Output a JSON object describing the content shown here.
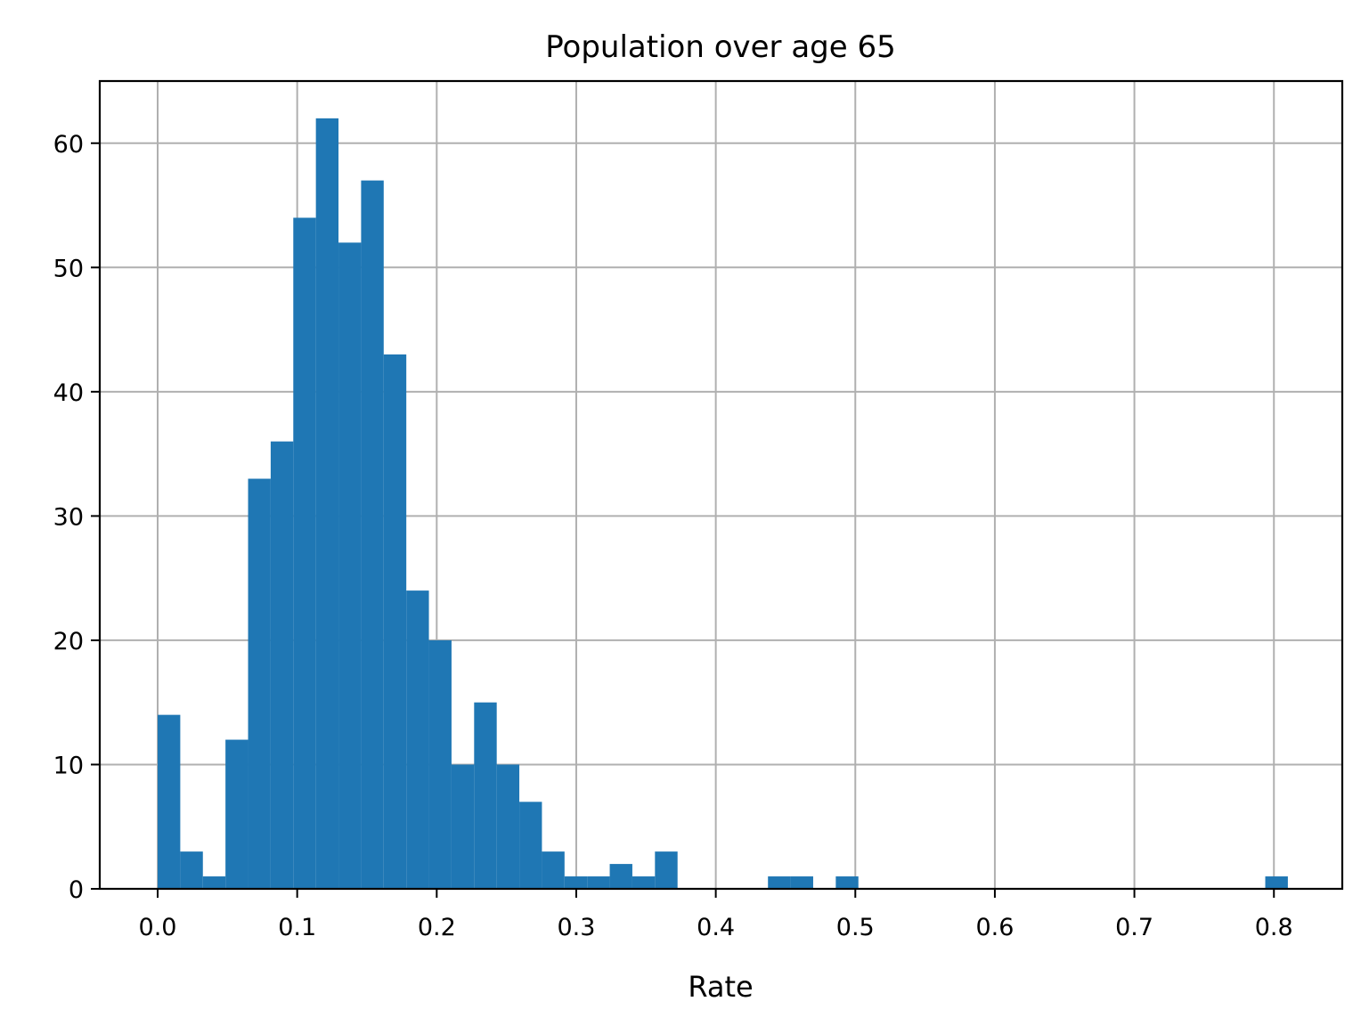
{
  "chart_data": {
    "type": "bar",
    "title": "Population over age 65",
    "xlabel": "Rate",
    "ylabel": "",
    "grid": true,
    "bar_color": "#1f77b4",
    "bin_start": 0.0,
    "bin_width": 0.0162,
    "counts": [
      14,
      3,
      1,
      12,
      33,
      36,
      54,
      62,
      52,
      57,
      43,
      24,
      20,
      10,
      15,
      10,
      7,
      3,
      1,
      1,
      2,
      1,
      3,
      0,
      0,
      0,
      0,
      1,
      1,
      0,
      1,
      0,
      0,
      0,
      0,
      0,
      0,
      0,
      0,
      0,
      0,
      0,
      0,
      0,
      0,
      0,
      0,
      0,
      0,
      1
    ],
    "xlim": [
      -0.0415,
      0.849
    ],
    "ylim": [
      0,
      65
    ],
    "xticks": [
      0.0,
      0.1,
      0.2,
      0.3,
      0.4,
      0.5,
      0.6,
      0.7,
      0.8
    ],
    "xtick_labels": [
      "0.0",
      "0.1",
      "0.2",
      "0.3",
      "0.4",
      "0.5",
      "0.6",
      "0.7",
      "0.8"
    ],
    "yticks": [
      0,
      10,
      20,
      30,
      40,
      50,
      60
    ],
    "ytick_labels": [
      "0",
      "10",
      "20",
      "30",
      "40",
      "50",
      "60"
    ]
  }
}
